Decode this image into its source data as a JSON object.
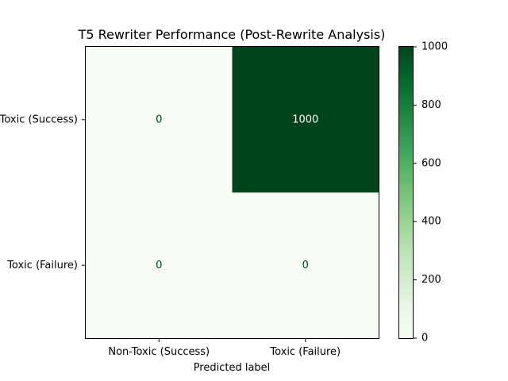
{
  "chart_data": {
    "type": "heatmap",
    "title": "T5 Rewriter Performance (Post-Rewrite Analysis)",
    "xlabel": "Predicted label",
    "ylabel": "",
    "x_categories": [
      "Non-Toxic (Success)",
      "Toxic (Failure)"
    ],
    "y_categories": [
      "Non-Toxic (Success)",
      "Toxic (Failure)"
    ],
    "values": [
      [
        0,
        1000
      ],
      [
        0,
        0
      ]
    ],
    "colormap": "Greens",
    "vmin": 0,
    "vmax": 1000,
    "colorbar_ticks": [
      "0",
      "200",
      "400",
      "600",
      "800",
      "1000"
    ],
    "grid": false,
    "legend": "none"
  },
  "colors": {
    "low": "#f7fcf5",
    "high": "#00441b",
    "text_on_low": "#00441b",
    "text_on_high": "#f7fcf5"
  }
}
